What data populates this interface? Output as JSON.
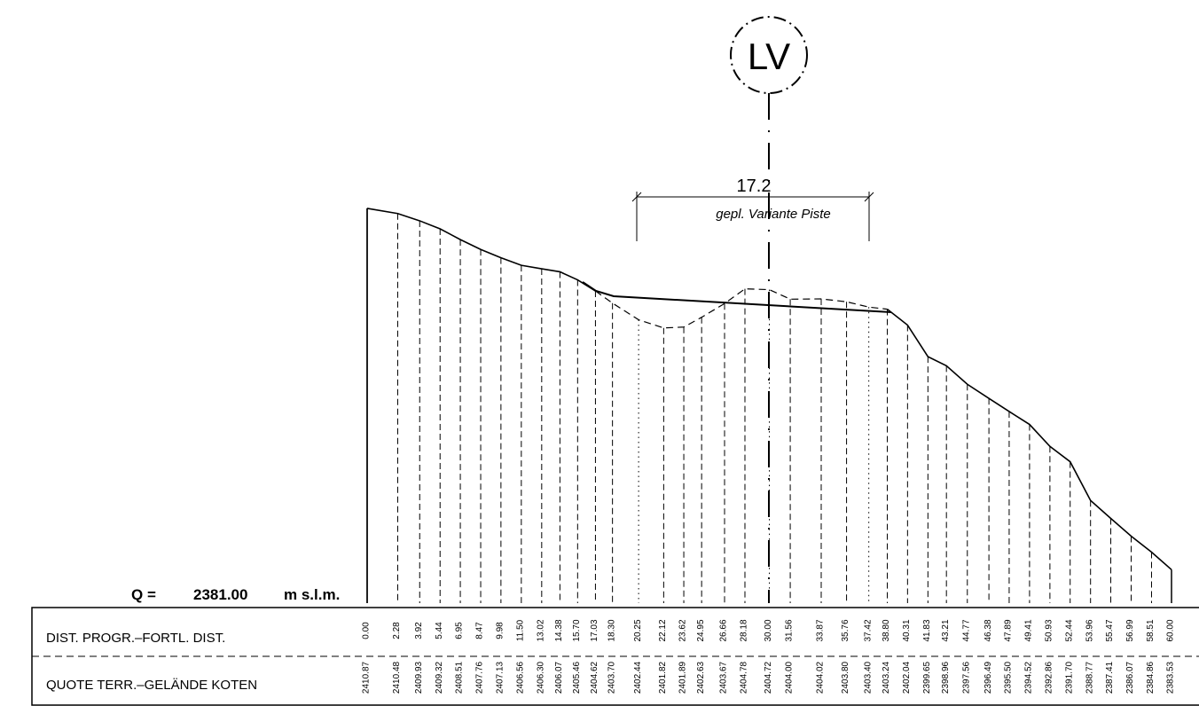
{
  "marker": {
    "label": "LV"
  },
  "dimension": {
    "value": "17.2",
    "label": "gepl. Variante Piste"
  },
  "datum": {
    "prefix": "Q =",
    "value": "2381.00",
    "unit": "m s.l.m."
  },
  "table": {
    "row_labels": [
      "DIST. PROGR.–FORTL. DIST.",
      "QUOTE TERR.–GELÄNDE KOTEN"
    ],
    "distances": [
      "0.00",
      "2.28",
      "3.92",
      "5.44",
      "6.95",
      "8.47",
      "9.98",
      "11.50",
      "13.02",
      "14.38",
      "15.70",
      "17.03",
      "18.30",
      "20.25",
      "22.12",
      "23.62",
      "24.95",
      "26.66",
      "28.18",
      "30.00",
      "31.56",
      "33.87",
      "35.76",
      "37.42",
      "38.80",
      "40.31",
      "41.83",
      "43.21",
      "44.77",
      "46.38",
      "47.89",
      "49.41",
      "50.93",
      "52.44",
      "53.96",
      "55.47",
      "56.99",
      "58.51",
      "60.00"
    ],
    "elevations": [
      "2410.87",
      "2410.48",
      "2409.93",
      "2409.32",
      "2408.51",
      "2407.76",
      "2407.13",
      "2406.56",
      "2406.30",
      "2406.07",
      "2405.46",
      "2404.62",
      "2403.70",
      "2402.44",
      "2401.82",
      "2401.89",
      "2402.63",
      "2403.67",
      "2404.78",
      "2404.72",
      "2404.00",
      "2404.02",
      "2403.80",
      "2403.40",
      "2403.24",
      "2402.04",
      "2399.65",
      "2398.96",
      "2397.56",
      "2396.49",
      "2395.50",
      "2394.52",
      "2392.86",
      "2391.70",
      "2388.77",
      "2387.41",
      "2386.07",
      "2384.86",
      "2383.53"
    ]
  }
}
